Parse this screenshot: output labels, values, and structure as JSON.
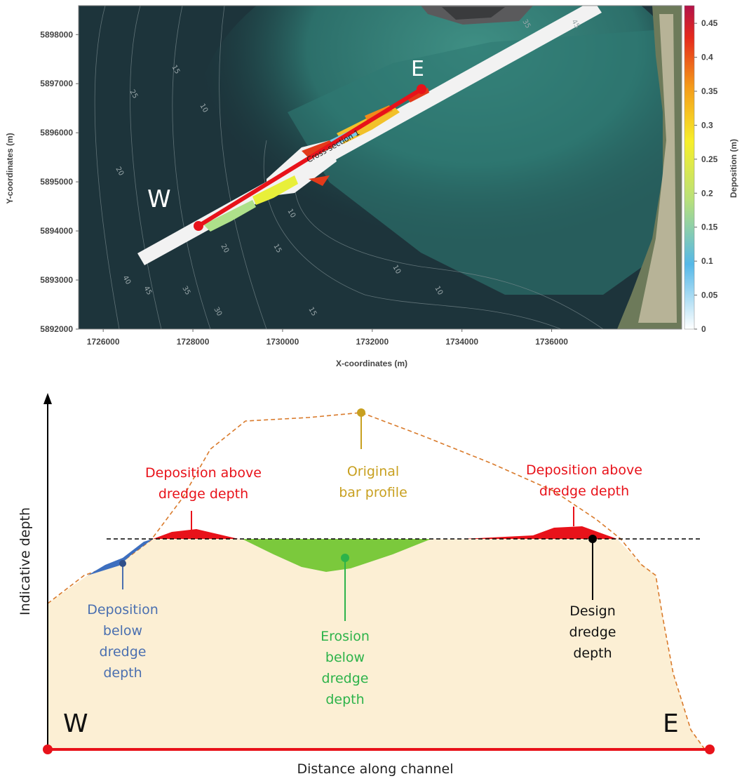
{
  "map": {
    "x_label": "X-coordinates (m)",
    "y_label": "Y-coordinates (m)",
    "xlim": [
      1725450,
      1738900
    ],
    "ylim": [
      5892000,
      5898590
    ],
    "xticks": [
      1726000,
      1728000,
      1730000,
      1732000,
      1734000,
      1736000
    ],
    "yticks": [
      5892000,
      5893000,
      5894000,
      5895000,
      5896000,
      5897000,
      5898000
    ],
    "west_label": "W",
    "east_label": "E",
    "section_label": "Cross-section 1",
    "contour_labels": [
      "25",
      "20",
      "15",
      "10",
      "45",
      "40",
      "35",
      "30",
      "20",
      "15",
      "10",
      "15",
      "10",
      "10",
      "35",
      "45"
    ],
    "colorbar": {
      "label": "Deposition (m)",
      "lim": [
        0,
        0.476
      ],
      "ticks": [
        0,
        0.05,
        0.1,
        0.15,
        0.2,
        0.25,
        0.3,
        0.35,
        0.4,
        0.45
      ]
    }
  },
  "diagram": {
    "y_label": "Indicative depth",
    "x_label": "Distance along channel",
    "west_label": "W",
    "east_label": "E",
    "deposition_above_left": [
      "Deposition above",
      "dredge depth"
    ],
    "original_profile": [
      "Original",
      "bar profile"
    ],
    "deposition_above_right": [
      "Deposition above",
      "dredge depth"
    ],
    "deposition_below": [
      "Deposition",
      "below",
      "dredge",
      "depth"
    ],
    "erosion_below": [
      "Erosion",
      "below",
      "dredge",
      "depth"
    ],
    "design_depth": [
      "Design",
      "dredge",
      "depth"
    ]
  }
}
